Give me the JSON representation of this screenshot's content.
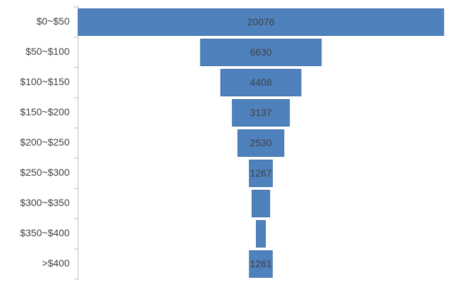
{
  "chart_data": {
    "type": "funnel",
    "categories": [
      "$0~$50",
      "$50~$100",
      "$100~$150",
      "$150~$200",
      "$200~$250",
      "$250~$300",
      "$300~$350",
      "$350~$400",
      ">$400"
    ],
    "values": [
      20076,
      6630,
      4408,
      3137,
      2530,
      1267,
      973,
      500,
      1261
    ],
    "color": "#4f81bd"
  }
}
